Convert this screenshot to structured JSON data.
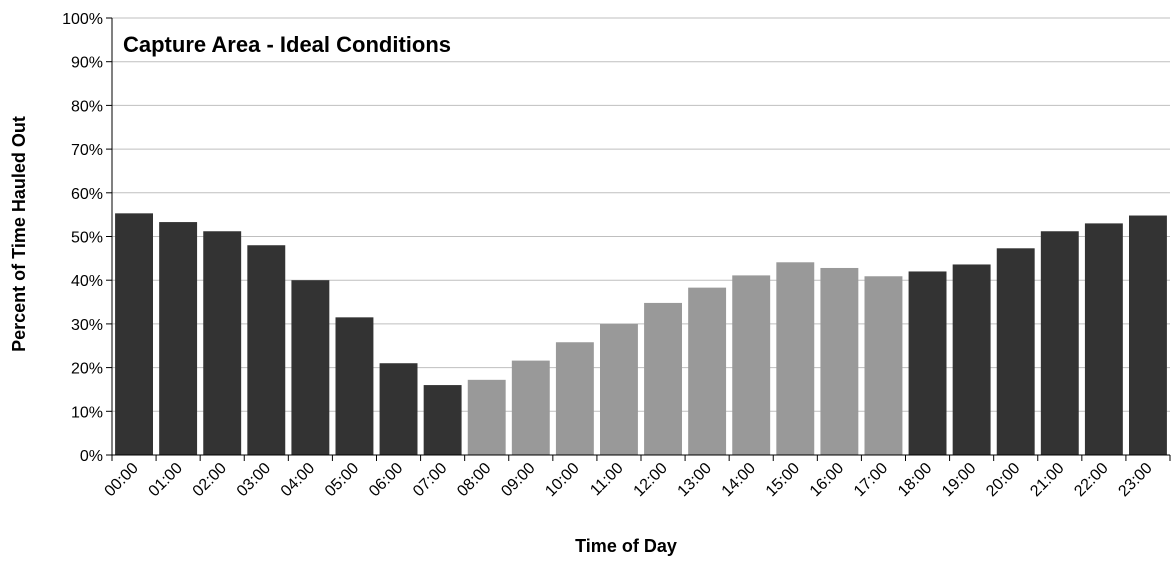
{
  "chart_data": {
    "type": "bar",
    "title": "Capture Area - Ideal Conditions",
    "xlabel": "Time of Day",
    "ylabel": "Percent of Time Hauled Out",
    "ylim": [
      0,
      100
    ],
    "yticks": [
      "0%",
      "10%",
      "20%",
      "30%",
      "40%",
      "50%",
      "60%",
      "70%",
      "80%",
      "90%",
      "100%"
    ],
    "grid": true,
    "categories": [
      "00:00",
      "01:00",
      "02:00",
      "03:00",
      "04:00",
      "05:00",
      "06:00",
      "07:00",
      "08:00",
      "09:00",
      "10:00",
      "11:00",
      "12:00",
      "13:00",
      "14:00",
      "15:00",
      "16:00",
      "17:00",
      "18:00",
      "19:00",
      "20:00",
      "21:00",
      "22:00",
      "23:00"
    ],
    "values": [
      55.3,
      53.3,
      51.2,
      48.0,
      40.0,
      31.5,
      21.0,
      16.0,
      17.2,
      21.6,
      25.8,
      30.0,
      34.8,
      38.3,
      41.1,
      44.1,
      42.8,
      40.9,
      42.0,
      43.6,
      47.3,
      51.2,
      53.0,
      54.8
    ],
    "bar_colors": [
      "#333333",
      "#333333",
      "#333333",
      "#333333",
      "#333333",
      "#333333",
      "#333333",
      "#333333",
      "#999999",
      "#999999",
      "#999999",
      "#999999",
      "#999999",
      "#999999",
      "#999999",
      "#999999",
      "#999999",
      "#999999",
      "#333333",
      "#333333",
      "#333333",
      "#333333",
      "#333333",
      "#333333"
    ]
  }
}
